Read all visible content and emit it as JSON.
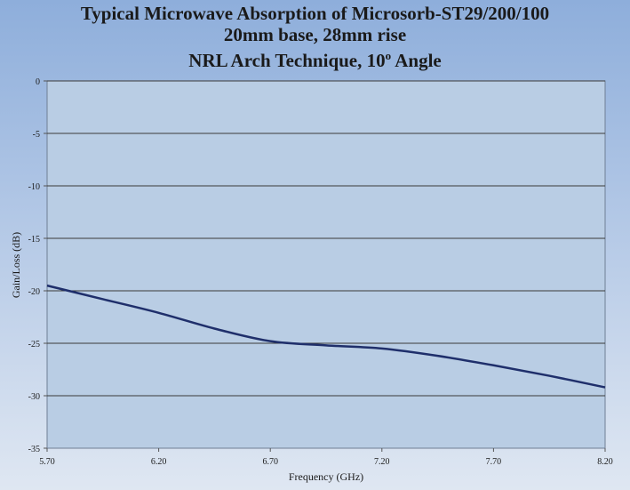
{
  "chart_data": {
    "type": "line",
    "title_lines": [
      "Typical Microwave Absorption of Microsorb-ST29/200/100",
      "20mm base, 28mm rise",
      "NRL Arch Technique, 10",
      "Angle"
    ],
    "title_superscript": "o",
    "xlabel": "Frequency (GHz)",
    "ylabel": "Gain/Loss (dB)",
    "xlim": [
      5.7,
      8.2
    ],
    "ylim": [
      -35,
      0
    ],
    "x_ticks": [
      "5.70",
      "6.20",
      "6.70",
      "7.20",
      "7.70",
      "8.20"
    ],
    "y_ticks": [
      "0",
      "-5",
      "-10",
      "-15",
      "-20",
      "-25",
      "-30",
      "-35"
    ],
    "grid": true,
    "series": [
      {
        "x": [
          5.7,
          5.95,
          6.2,
          6.45,
          6.7,
          6.95,
          7.2,
          7.45,
          7.7,
          7.95,
          8.2
        ],
        "y": [
          -19.5,
          -20.8,
          -22.1,
          -23.6,
          -24.8,
          -25.2,
          -25.5,
          -26.2,
          -27.1,
          -28.1,
          -29.2
        ],
        "color": "#1f2f6b"
      }
    ],
    "colors": {
      "plot_bg": "#b9cde4",
      "grid": "#3a3a3a",
      "line": "#1f2f6b"
    }
  }
}
